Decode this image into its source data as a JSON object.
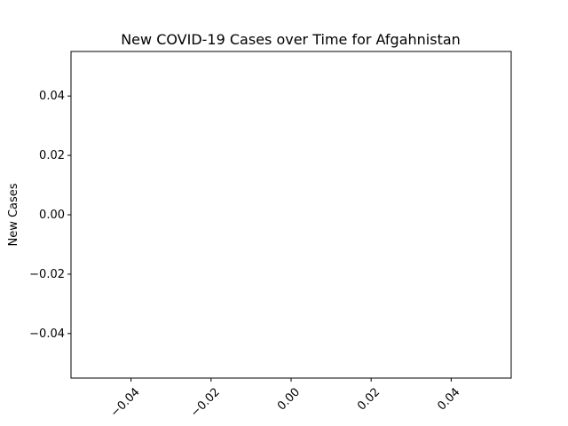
{
  "chart_data": {
    "type": "line",
    "title": "New COVID-19 Cases over Time for Afgahnistan",
    "xlabel": "",
    "ylabel": "New Cases",
    "xlim": [
      -0.055,
      0.055
    ],
    "ylim": [
      -0.055,
      0.055
    ],
    "x_ticks": [
      -0.04,
      -0.02,
      0.0,
      0.02,
      0.04
    ],
    "x_tick_labels": [
      "−0.04",
      "−0.02",
      "0.00",
      "0.02",
      "0.04"
    ],
    "y_ticks": [
      0.04,
      0.02,
      0.0,
      -0.02,
      -0.04
    ],
    "y_tick_labels": [
      "0.04",
      "0.02",
      "0.00",
      "−0.02",
      "−0.04"
    ],
    "grid": false,
    "x_tick_rotation_deg": 45,
    "series": [
      {
        "x": [],
        "values": []
      }
    ]
  }
}
